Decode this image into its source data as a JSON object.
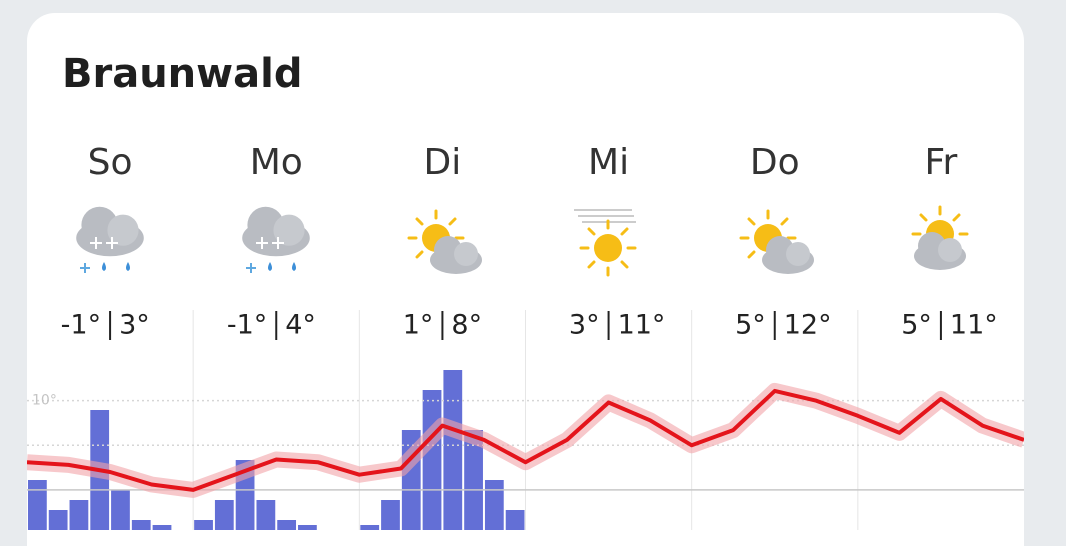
{
  "title": "Braunwald",
  "days": [
    {
      "name": "So",
      "low": "-1°",
      "high": "3°"
    },
    {
      "name": "Mo",
      "low": "-1°",
      "high": "4°"
    },
    {
      "name": "Di",
      "low": "1°",
      "high": "8°"
    },
    {
      "name": "Mi",
      "low": "3°",
      "high": "11°"
    },
    {
      "name": "Do",
      "low": "5°",
      "high": "12°"
    },
    {
      "name": "Fr",
      "low": "5°",
      "high": "11°"
    }
  ],
  "chart_data": [
    {
      "type": "line",
      "color": "#e4141b",
      "x": [
        0,
        6,
        12,
        18,
        24,
        30,
        36,
        42,
        48,
        54,
        60,
        66,
        72,
        78,
        84,
        90,
        96,
        102,
        108,
        114,
        120,
        126,
        132,
        138,
        144
      ],
      "values": [
        3.1,
        2.8,
        2.0,
        0.6,
        0,
        1.7,
        3.4,
        3.1,
        1.7,
        2.4,
        7.2,
        5.6,
        3.1,
        5.6,
        9.8,
        7.8,
        5.0,
        6.7,
        11.1,
        10.0,
        8.3,
        6.4,
        10.2,
        7.2,
        5.6
      ],
      "xlim": [
        0,
        144
      ],
      "ylim": [
        -4.5,
        14
      ],
      "yticks": [
        {
          "value": 0,
          "label": null
        },
        {
          "value": 5,
          "label": null
        },
        {
          "value": 10,
          "label": "10°"
        }
      ],
      "grid": true
    },
    {
      "type": "bar",
      "color": "#2f3fc8",
      "x": [
        0,
        3,
        6,
        9,
        12,
        15,
        18,
        21,
        24,
        27,
        30,
        33,
        36,
        39,
        42,
        45,
        48,
        51,
        54,
        57,
        60,
        63,
        66,
        69,
        72,
        75,
        78,
        81,
        84,
        87,
        90,
        93,
        96,
        99,
        102,
        105,
        108,
        111,
        114,
        117,
        120,
        123,
        126,
        129,
        132,
        135,
        138,
        141
      ],
      "values": [
        5,
        2,
        3,
        12,
        4,
        1,
        0.5,
        0,
        1,
        3,
        7,
        3,
        1,
        0.5,
        0,
        0,
        0.5,
        3,
        10,
        14,
        16,
        10,
        5,
        2,
        0,
        0,
        0,
        0,
        0,
        0,
        0,
        0,
        0,
        0,
        0,
        0,
        0,
        0,
        0,
        0,
        0,
        0,
        0,
        0,
        0,
        0,
        0,
        0
      ],
      "xlim": [
        0,
        144
      ],
      "ylim": [
        0,
        16.5
      ]
    }
  ]
}
